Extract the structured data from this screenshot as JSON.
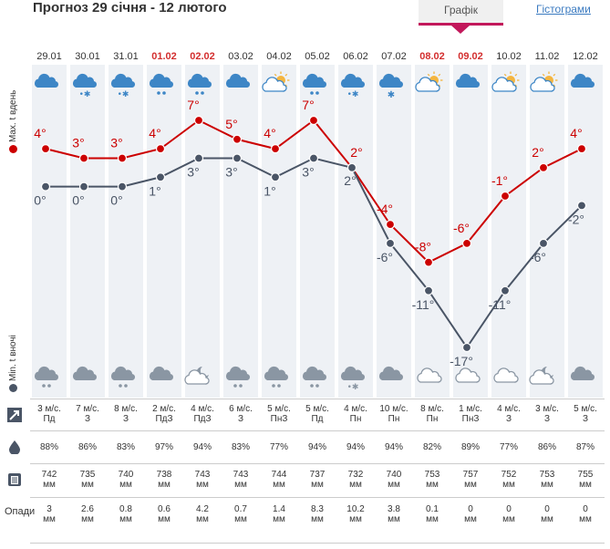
{
  "header": {
    "title": "Прогноз 29 січня - 12 лютого",
    "tab_active": "Графік",
    "tab_link": "Гістограми"
  },
  "labels": {
    "max": "Max. t вдень",
    "min": "Min. t вночі",
    "precip": "Опади"
  },
  "colors": {
    "max": "#cc0000",
    "min": "#4a5566",
    "accent": "#c2185b",
    "date_red": "#d32f2f",
    "icon": "#3d86c6"
  },
  "chart_data": {
    "type": "line",
    "categories": [
      "29.01",
      "30.01",
      "31.01",
      "01.02",
      "02.02",
      "03.02",
      "04.02",
      "05.02",
      "06.02",
      "07.02",
      "08.02",
      "09.02",
      "10.02",
      "11.02",
      "12.02"
    ],
    "red_dates": [
      "01.02",
      "02.02",
      "08.02",
      "09.02"
    ],
    "series": [
      {
        "name": "Max. t вдень",
        "values": [
          4,
          3,
          3,
          4,
          7,
          5,
          4,
          7,
          2,
          -4,
          -8,
          -6,
          -1,
          2,
          4
        ]
      },
      {
        "name": "Min. t вночі",
        "values": [
          0,
          0,
          0,
          1,
          3,
          3,
          1,
          3,
          2,
          -6,
          -11,
          -17,
          -11,
          -6,
          -2
        ]
      }
    ],
    "day_icons": [
      "cloud",
      "cloud-snow",
      "cloud-snow",
      "cloud-rain",
      "cloud-rain",
      "cloud",
      "sun-cloud",
      "cloud-rain",
      "cloud-snow",
      "snowflake",
      "sun-cloud",
      "cloud",
      "sun-cloud",
      "sun-cloud",
      "cloud"
    ],
    "night_icons": [
      "cloud-rain",
      "cloud",
      "cloud-rain",
      "cloud",
      "moon-cloud",
      "cloud-rain",
      "cloud-rain",
      "cloud-rain",
      "cloud-snow",
      "cloud",
      "cloud-outline",
      "cloud-outline",
      "cloud-outline",
      "moon-cloud",
      "cloud"
    ]
  },
  "table": {
    "wind": [
      [
        "3 м/с.",
        "Пд"
      ],
      [
        "7 м/с.",
        "З"
      ],
      [
        "8 м/с.",
        "З"
      ],
      [
        "2 м/с.",
        "ПдЗ"
      ],
      [
        "4 м/с.",
        "ПдЗ"
      ],
      [
        "6 м/с.",
        "З"
      ],
      [
        "5 м/с.",
        "ПнЗ"
      ],
      [
        "5 м/с.",
        "Пд"
      ],
      [
        "4 м/с.",
        "Пн"
      ],
      [
        "10 м/с.",
        "Пн"
      ],
      [
        "8 м/с.",
        "Пн"
      ],
      [
        "1 м/с.",
        "ПнЗ"
      ],
      [
        "4 м/с.",
        "З"
      ],
      [
        "3 м/с.",
        "З"
      ],
      [
        "5 м/с.",
        "З"
      ]
    ],
    "humidity": [
      "88%",
      "86%",
      "83%",
      "97%",
      "94%",
      "83%",
      "77%",
      "94%",
      "94%",
      "94%",
      "82%",
      "89%",
      "77%",
      "86%",
      "87%"
    ],
    "pressure": [
      "742",
      "735",
      "740",
      "738",
      "743",
      "743",
      "744",
      "737",
      "732",
      "740",
      "753",
      "757",
      "752",
      "753",
      "755"
    ],
    "pressure_unit": "мм",
    "precip": [
      "3",
      "2.6",
      "0.8",
      "0.6",
      "4.2",
      "0.7",
      "1.4",
      "8.3",
      "10.2",
      "3.8",
      "0.1",
      "0",
      "0",
      "0",
      "0"
    ],
    "precip_unit": "мм"
  }
}
